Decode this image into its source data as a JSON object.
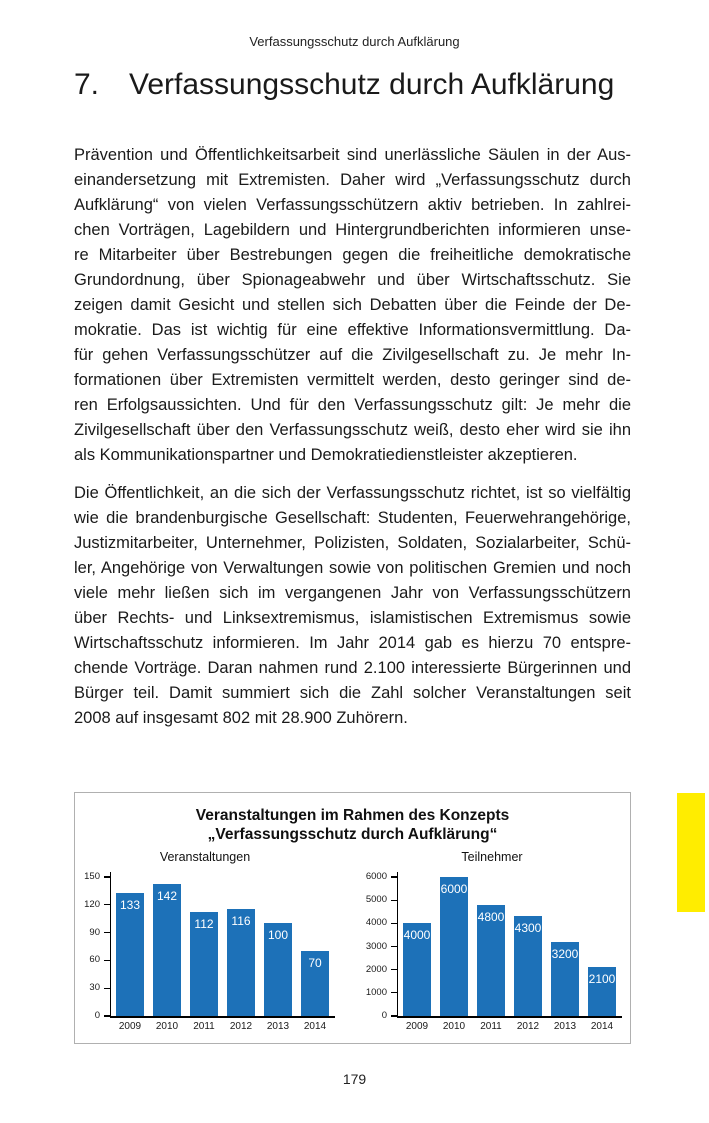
{
  "page": {
    "running_header": "Verfassungsschutz durch Aufklärung",
    "page_number": "179"
  },
  "heading": {
    "number": "7.",
    "title": "Verfassungsschutz durch Aufklärung"
  },
  "paragraphs": [
    {
      "lines": [
        "Prävention und Öffentlichkeitsarbeit sind unerlässliche Säulen in der Aus-",
        "einandersetzung mit Extremisten. Daher wird „Verfassungsschutz durch",
        "Aufklärung“ von vielen Verfassungsschützern aktiv betrieben. In zahlrei-",
        "chen Vorträgen, Lagebildern und Hintergrundberichten informieren unse-",
        "re Mitarbeiter über Bestrebungen gegen die freiheitliche demokratische",
        "Grundordnung, über Spionageabwehr und über Wirtschaftsschutz. Sie",
        "zeigen damit Gesicht und stellen sich Debatten über die Feinde der De-",
        "mokratie. Das ist wichtig für eine effektive Informationsvermittlung. Da-",
        "für gehen Verfassungsschützer auf die Zivilgesellschaft zu. Je mehr In-",
        "formationen über Extremisten vermittelt werden, desto geringer sind de-",
        "ren Erfolgsaussichten. Und für den Verfassungsschutz gilt: Je mehr die",
        "Zivilgesellschaft über den Verfassungsschutz weiß, desto eher wird sie ihn",
        "als Kommunikationspartner und Demokratiedienstleister akzeptieren."
      ]
    },
    {
      "lines": [
        "Die Öffentlichkeit, an die sich der Verfassungsschutz richtet, ist so vielfältig",
        "wie die brandenburgische Gesellschaft: Studenten, Feuerwehrangehörige,",
        "Justizmitarbeiter, Unternehmer, Polizisten, Soldaten, Sozialarbeiter, Schü-",
        "ler, Angehörige von Verwaltungen sowie von politischen Gremien und noch",
        "viele mehr ließen sich im vergangenen Jahr von Verfassungsschützern",
        "über Rechts- und Linksextremismus, islamistischen Extremismus sowie",
        "Wirtschaftsschutz informieren. Im Jahr 2014 gab es hierzu 70 entspre-",
        "chende Vorträge. Daran nahmen rund 2.100 interessierte Bürgerinnen und",
        "Bürger teil. Damit summiert sich die Zahl solcher Veranstaltungen seit",
        "2008 auf insgesamt 802 mit 28.900 Zuhörern."
      ]
    }
  ],
  "figure": {
    "title_line1": "Veranstaltungen im Rahmen des Konzepts",
    "title_line2": "„Verfassungsschutz durch Aufklärung“",
    "border_color": "#b0b0b0"
  },
  "edge_marker": {
    "color": "#ffed00"
  },
  "chart_data": [
    {
      "type": "bar",
      "title": "Veranstaltungen",
      "categories": [
        "2009",
        "2010",
        "2011",
        "2012",
        "2013",
        "2014"
      ],
      "values": [
        133,
        142,
        112,
        116,
        100,
        70
      ],
      "ylim": [
        0,
        150
      ],
      "yticks": [
        0,
        30,
        60,
        90,
        120,
        150
      ],
      "bar_color": "#1d71b8",
      "data_labels": true,
      "grid": false,
      "legend": false
    },
    {
      "type": "bar",
      "title": "Teilnehmer",
      "categories": [
        "2009",
        "2010",
        "2011",
        "2012",
        "2013",
        "2014"
      ],
      "values": [
        4000,
        6000,
        4800,
        4300,
        3200,
        2100
      ],
      "ylim": [
        0,
        6000
      ],
      "yticks": [
        0,
        1000,
        2000,
        3000,
        4000,
        5000,
        6000
      ],
      "bar_color": "#1d71b8",
      "data_labels": true,
      "grid": false,
      "legend": false
    }
  ]
}
